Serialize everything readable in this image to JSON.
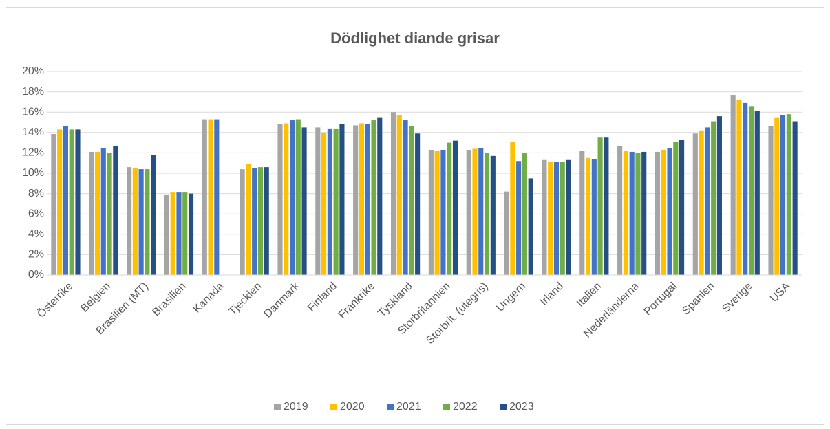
{
  "chart_data": {
    "type": "bar",
    "title": "Dödlighet diande grisar",
    "categories": [
      "Österrike",
      "Belgien",
      "Brasilien (MT)",
      "Brasilien",
      "Kanada",
      "Tjeckien",
      "Danmark",
      "Finland",
      "Frankrike",
      "Tyskland",
      "Storbritannien",
      "Storbrit. (utegris)",
      "Ungern",
      "Irland",
      "Italien",
      "Nederländerna",
      "Portugal",
      "Spanien",
      "Sverige",
      "USA"
    ],
    "series": [
      {
        "name": "2019",
        "color": "#a5a5a5",
        "values": [
          13.85,
          12.1,
          10.6,
          7.9,
          15.3,
          10.4,
          14.8,
          14.5,
          14.7,
          16.0,
          12.3,
          12.3,
          8.2,
          11.3,
          12.2,
          12.7,
          12.1,
          13.9,
          17.7,
          14.6
        ]
      },
      {
        "name": "2020",
        "color": "#ffc000",
        "values": [
          14.3,
          12.1,
          10.5,
          8.1,
          15.3,
          10.9,
          14.9,
          14.0,
          14.9,
          15.7,
          12.2,
          12.4,
          13.1,
          11.1,
          11.5,
          12.2,
          12.3,
          14.2,
          17.2,
          15.5
        ]
      },
      {
        "name": "2021",
        "color": "#4472c4",
        "values": [
          14.6,
          12.5,
          10.4,
          8.1,
          15.3,
          10.5,
          15.2,
          14.4,
          14.8,
          15.2,
          12.3,
          12.5,
          11.2,
          11.1,
          11.4,
          12.1,
          12.5,
          14.5,
          16.9,
          15.7
        ]
      },
      {
        "name": "2022",
        "color": "#70ad47",
        "values": [
          14.3,
          12.0,
          10.4,
          8.1,
          null,
          10.6,
          15.3,
          14.4,
          15.2,
          14.6,
          13.0,
          12.0,
          12.0,
          11.1,
          13.5,
          12.0,
          13.1,
          15.1,
          16.6,
          15.8
        ]
      },
      {
        "name": "2023",
        "color": "#264f84",
        "values": [
          14.3,
          12.7,
          11.8,
          8.0,
          null,
          10.6,
          14.5,
          14.8,
          15.5,
          13.9,
          13.2,
          11.7,
          9.5,
          11.3,
          13.5,
          12.1,
          13.3,
          15.6,
          16.1,
          15.1
        ]
      }
    ],
    "ylim": [
      0,
      20
    ],
    "yticks": [
      {
        "value": 0,
        "label": "0%"
      },
      {
        "value": 2,
        "label": "2%"
      },
      {
        "value": 4,
        "label": "4%"
      },
      {
        "value": 6,
        "label": "6%"
      },
      {
        "value": 8,
        "label": "8%"
      },
      {
        "value": 10,
        "label": "10%"
      },
      {
        "value": 12,
        "label": "12%"
      },
      {
        "value": 14,
        "label": "14%"
      },
      {
        "value": 16,
        "label": "16%"
      },
      {
        "value": 18,
        "label": "18%"
      },
      {
        "value": 20,
        "label": "20%"
      }
    ],
    "grid": true
  }
}
